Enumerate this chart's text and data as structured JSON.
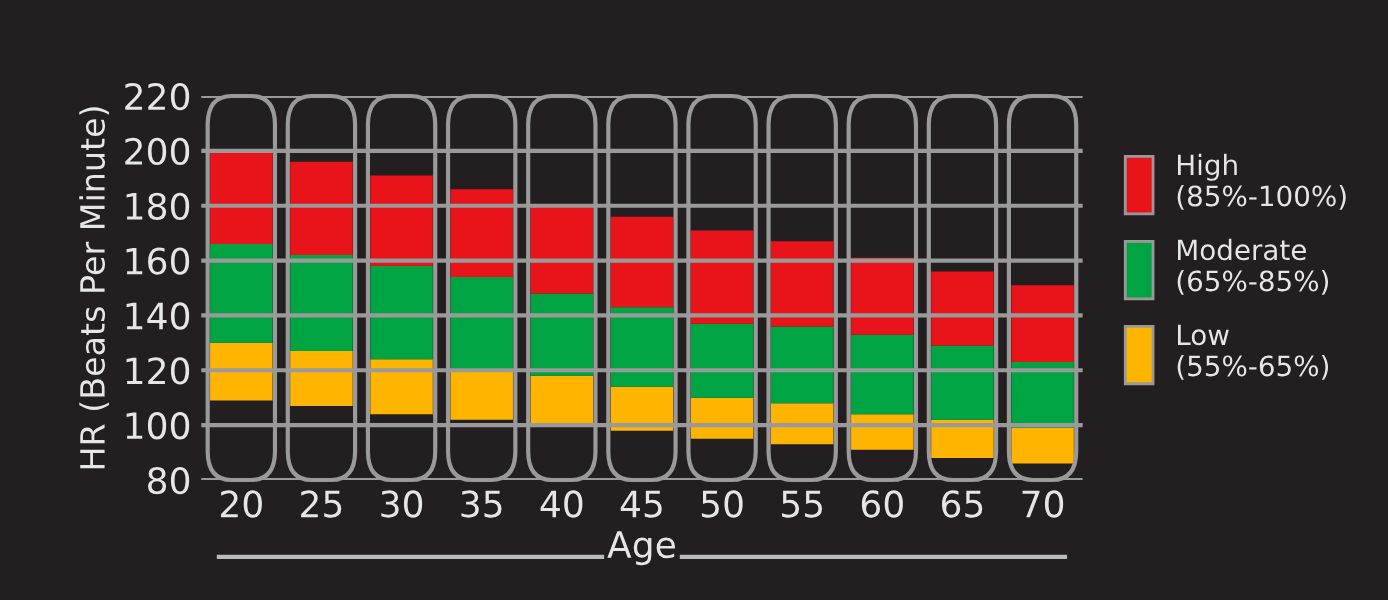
{
  "chart_data": {
    "type": "bar",
    "xlabel": "Age",
    "ylabel": "HR (Beats Per Minute)",
    "categories": [
      "20",
      "25",
      "30",
      "35",
      "40",
      "45",
      "50",
      "55",
      "60",
      "65",
      "70"
    ],
    "series": [
      {
        "name": "Low\n(55%-65%)",
        "color": "#ffb400",
        "base": [
          109,
          107,
          104,
          102,
          100,
          98,
          95,
          93,
          91,
          88,
          86
        ],
        "values": [
          21,
          20,
          20,
          18,
          18,
          16,
          15,
          15,
          13,
          14,
          13
        ]
      },
      {
        "name": "Moderate\n(65%-85%)",
        "color": "#00a443",
        "base": [
          130,
          127,
          124,
          120,
          118,
          114,
          110,
          108,
          104,
          102,
          99
        ],
        "values": [
          36,
          35,
          34,
          34,
          30,
          29,
          27,
          28,
          29,
          27,
          24
        ]
      },
      {
        "name": "High\n(85%-100%)",
        "color": "#e8141a",
        "base": [
          166,
          162,
          158,
          154,
          148,
          143,
          137,
          136,
          133,
          129,
          123
        ],
        "values": [
          34,
          34,
          33,
          32,
          32,
          33,
          34,
          31,
          28,
          27,
          28
        ]
      }
    ],
    "ylim": [
      80,
      220
    ],
    "yticks": [
      80,
      100,
      120,
      140,
      160,
      180,
      200,
      220
    ],
    "grid": "y",
    "legend": "right"
  }
}
